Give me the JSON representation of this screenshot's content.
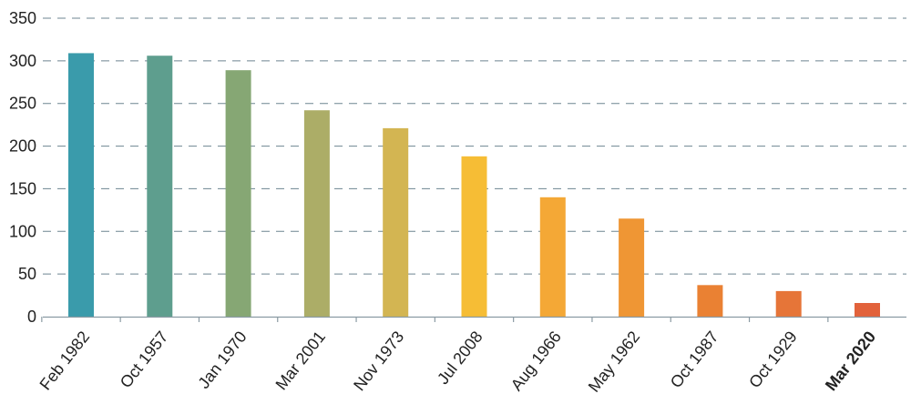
{
  "chart_data": {
    "type": "bar",
    "categories": [
      "Feb 1982",
      "Oct 1957",
      "Jan 1970",
      "Mar 2001",
      "Nov 1973",
      "Jul 2008",
      "Aug 1966",
      "May 1962",
      "Oct 1987",
      "Oct 1929",
      "Mar 2020"
    ],
    "values": [
      309,
      306,
      289,
      242,
      221,
      188,
      140,
      115,
      37,
      30,
      16
    ],
    "colors": [
      "#3a9bab",
      "#5e9e8e",
      "#86a774",
      "#acad67",
      "#d3b552",
      "#f6bd35",
      "#f4a836",
      "#ef9634",
      "#ea8133",
      "#e67538",
      "#e2623b"
    ],
    "highlight_category": "Mar 2020",
    "yticks": [
      0,
      50,
      100,
      150,
      200,
      250,
      300,
      350
    ],
    "ylim": [
      0,
      350
    ],
    "grid": true,
    "title": "",
    "xlabel": "",
    "ylabel": ""
  }
}
